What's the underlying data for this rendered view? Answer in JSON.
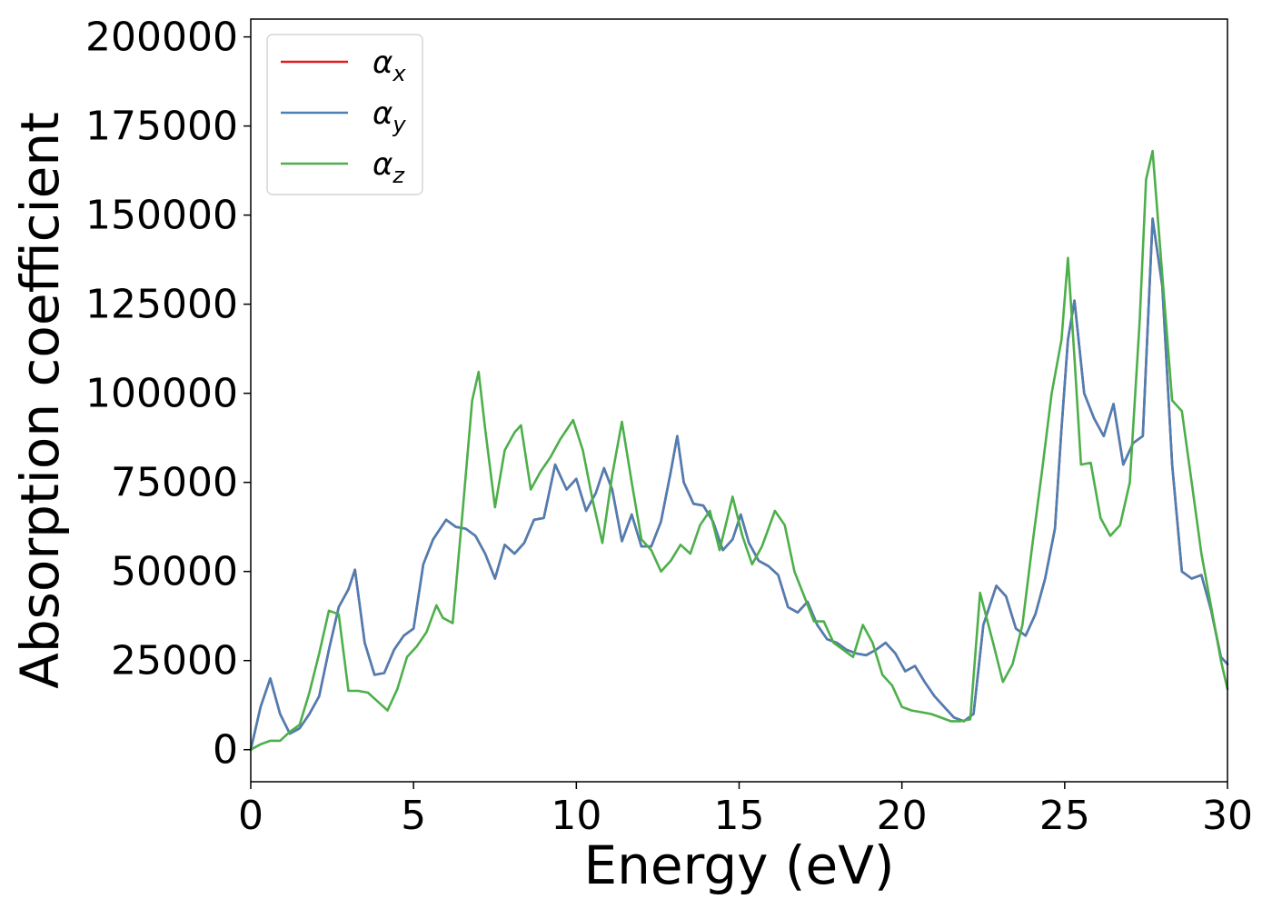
{
  "chart_data": {
    "type": "line",
    "title": "",
    "xlabel": "Energy (eV)",
    "ylabel": "Absorption coefficient",
    "xlim": [
      0,
      30
    ],
    "ylim": [
      -9000,
      205000
    ],
    "xticks": [
      0,
      5,
      10,
      15,
      20,
      25,
      30
    ],
    "yticks": [
      0,
      25000,
      50000,
      75000,
      100000,
      125000,
      150000,
      175000,
      200000
    ],
    "grid": false,
    "legend_position": "top-left",
    "series": [
      {
        "name": "α_x",
        "symbol": "α",
        "subscript": "x",
        "color": "#e41a1c",
        "x": [
          0,
          0.3,
          0.6,
          0.9,
          1.2,
          1.5,
          1.8,
          2.1,
          2.4,
          2.7,
          3.0,
          3.2,
          3.5,
          3.8,
          4.1,
          4.4,
          4.7,
          5.0,
          5.3,
          5.6,
          6.0,
          6.3,
          6.6,
          6.9,
          7.2,
          7.5,
          7.8,
          8.1,
          8.4,
          8.7,
          9.0,
          9.35,
          9.7,
          10.0,
          10.3,
          10.6,
          10.85,
          11.1,
          11.4,
          11.7,
          12.0,
          12.3,
          12.6,
          12.9,
          13.1,
          13.3,
          13.6,
          13.9,
          14.2,
          14.5,
          14.8,
          15.05,
          15.3,
          15.6,
          15.9,
          16.2,
          16.5,
          16.8,
          17.1,
          17.4,
          17.7,
          18.0,
          18.3,
          18.6,
          18.9,
          19.2,
          19.5,
          19.8,
          20.1,
          20.4,
          20.7,
          21.0,
          21.3,
          21.6,
          21.9,
          22.2,
          22.5,
          22.9,
          23.2,
          23.5,
          23.8,
          24.1,
          24.4,
          24.7,
          24.9,
          25.1,
          25.3,
          25.6,
          25.9,
          26.2,
          26.5,
          26.8,
          27.1,
          27.4,
          27.7,
          28.0,
          28.3,
          28.6,
          28.9,
          29.2,
          29.5,
          29.8,
          30.0
        ],
        "y": [
          0,
          12000,
          20000,
          10000,
          4500,
          6000,
          10000,
          15000,
          28000,
          40000,
          45000,
          50500,
          30000,
          21000,
          21500,
          28000,
          32000,
          34000,
          52000,
          59000,
          64500,
          62500,
          62000,
          60000,
          55000,
          48000,
          57500,
          55000,
          58000,
          64500,
          65000,
          80000,
          73000,
          76000,
          67000,
          72000,
          79000,
          73000,
          58500,
          66000,
          57000,
          57000,
          64000,
          78000,
          88000,
          75000,
          69000,
          68500,
          64000,
          56000,
          59000,
          66000,
          58000,
          53000,
          51500,
          49000,
          40000,
          38500,
          41500,
          35000,
          31000,
          30000,
          28000,
          27000,
          26500,
          28000,
          30000,
          27000,
          22000,
          23500,
          19000,
          15000,
          12000,
          9000,
          8000,
          10000,
          35000,
          46000,
          43000,
          34000,
          32000,
          38000,
          48000,
          62000,
          90000,
          115000,
          126000,
          100000,
          93000,
          88000,
          97000,
          80000,
          86000,
          88000,
          149000,
          130000,
          80000,
          50000,
          48000,
          49000,
          39000,
          26000,
          24000
        ]
      },
      {
        "name": "α_y",
        "symbol": "α",
        "subscript": "y",
        "color": "#4c7fb4",
        "x": [
          0,
          0.3,
          0.6,
          0.9,
          1.2,
          1.5,
          1.8,
          2.1,
          2.4,
          2.7,
          3.0,
          3.2,
          3.5,
          3.8,
          4.1,
          4.4,
          4.7,
          5.0,
          5.3,
          5.6,
          6.0,
          6.3,
          6.6,
          6.9,
          7.2,
          7.5,
          7.8,
          8.1,
          8.4,
          8.7,
          9.0,
          9.35,
          9.7,
          10.0,
          10.3,
          10.6,
          10.85,
          11.1,
          11.4,
          11.7,
          12.0,
          12.3,
          12.6,
          12.9,
          13.1,
          13.3,
          13.6,
          13.9,
          14.2,
          14.5,
          14.8,
          15.05,
          15.3,
          15.6,
          15.9,
          16.2,
          16.5,
          16.8,
          17.1,
          17.4,
          17.7,
          18.0,
          18.3,
          18.6,
          18.9,
          19.2,
          19.5,
          19.8,
          20.1,
          20.4,
          20.7,
          21.0,
          21.3,
          21.6,
          21.9,
          22.2,
          22.5,
          22.9,
          23.2,
          23.5,
          23.8,
          24.1,
          24.4,
          24.7,
          24.9,
          25.1,
          25.3,
          25.6,
          25.9,
          26.2,
          26.5,
          26.8,
          27.1,
          27.4,
          27.7,
          28.0,
          28.3,
          28.6,
          28.9,
          29.2,
          29.5,
          29.8,
          30.0
        ],
        "y": [
          0,
          12000,
          20000,
          10000,
          4500,
          6000,
          10000,
          15000,
          28000,
          40000,
          45000,
          50500,
          30000,
          21000,
          21500,
          28000,
          32000,
          34000,
          52000,
          59000,
          64500,
          62500,
          62000,
          60000,
          55000,
          48000,
          57500,
          55000,
          58000,
          64500,
          65000,
          80000,
          73000,
          76000,
          67000,
          72000,
          79000,
          73000,
          58500,
          66000,
          57000,
          57000,
          64000,
          78000,
          88000,
          75000,
          69000,
          68500,
          64000,
          56000,
          59000,
          66000,
          58000,
          53000,
          51500,
          49000,
          40000,
          38500,
          41500,
          35000,
          31000,
          30000,
          28000,
          27000,
          26500,
          28000,
          30000,
          27000,
          22000,
          23500,
          19000,
          15000,
          12000,
          9000,
          8000,
          10000,
          35000,
          46000,
          43000,
          34000,
          32000,
          38000,
          48000,
          62000,
          90000,
          115000,
          126000,
          100000,
          93000,
          88000,
          97000,
          80000,
          86000,
          88000,
          149000,
          130000,
          80000,
          50000,
          48000,
          49000,
          39000,
          26000,
          24000
        ]
      },
      {
        "name": "α_z",
        "symbol": "α",
        "subscript": "z",
        "color": "#4daf4a",
        "x": [
          0,
          0.3,
          0.6,
          0.9,
          1.2,
          1.5,
          1.8,
          2.1,
          2.4,
          2.7,
          3.0,
          3.3,
          3.6,
          3.9,
          4.2,
          4.5,
          4.8,
          5.1,
          5.4,
          5.7,
          5.9,
          6.2,
          6.5,
          6.8,
          7.0,
          7.2,
          7.5,
          7.8,
          8.1,
          8.3,
          8.6,
          8.9,
          9.2,
          9.5,
          9.9,
          10.2,
          10.5,
          10.8,
          11.1,
          11.4,
          11.7,
          12.0,
          12.3,
          12.6,
          12.9,
          13.2,
          13.5,
          13.8,
          14.1,
          14.4,
          14.8,
          15.1,
          15.4,
          15.7,
          16.1,
          16.4,
          16.7,
          17.0,
          17.3,
          17.6,
          17.9,
          18.2,
          18.5,
          18.8,
          19.1,
          19.4,
          19.7,
          20.0,
          20.3,
          20.6,
          20.9,
          21.2,
          21.5,
          21.8,
          22.1,
          22.4,
          22.8,
          23.1,
          23.4,
          23.7,
          24.0,
          24.3,
          24.6,
          24.9,
          25.1,
          25.3,
          25.5,
          25.8,
          26.1,
          26.4,
          26.7,
          27.0,
          27.3,
          27.5,
          27.7,
          28.0,
          28.3,
          28.6,
          28.9,
          29.2,
          29.5,
          29.8,
          30.0
        ],
        "y": [
          0,
          1500,
          2500,
          2500,
          5000,
          7000,
          16000,
          27000,
          39000,
          38000,
          16500,
          16500,
          16000,
          13500,
          11000,
          17000,
          26000,
          29000,
          33000,
          40500,
          37000,
          35500,
          66000,
          98000,
          106000,
          90000,
          68000,
          84000,
          89000,
          91000,
          73000,
          78000,
          82000,
          87000,
          92500,
          84000,
          70000,
          58000,
          77000,
          92000,
          75000,
          59000,
          56000,
          50000,
          53000,
          57500,
          55000,
          63000,
          67000,
          56000,
          71000,
          60000,
          52000,
          57000,
          67000,
          63000,
          50000,
          43000,
          36000,
          36000,
          30000,
          28000,
          26000,
          35000,
          30000,
          21000,
          18000,
          12000,
          11000,
          10500,
          10000,
          9000,
          8000,
          8000,
          8500,
          44000,
          30000,
          19000,
          24000,
          35000,
          57000,
          78000,
          100000,
          115000,
          138000,
          110000,
          80000,
          80500,
          65000,
          60000,
          63000,
          75000,
          120000,
          160000,
          168000,
          133000,
          98000,
          95000,
          75000,
          55000,
          40000,
          25000,
          17000
        ]
      }
    ]
  }
}
